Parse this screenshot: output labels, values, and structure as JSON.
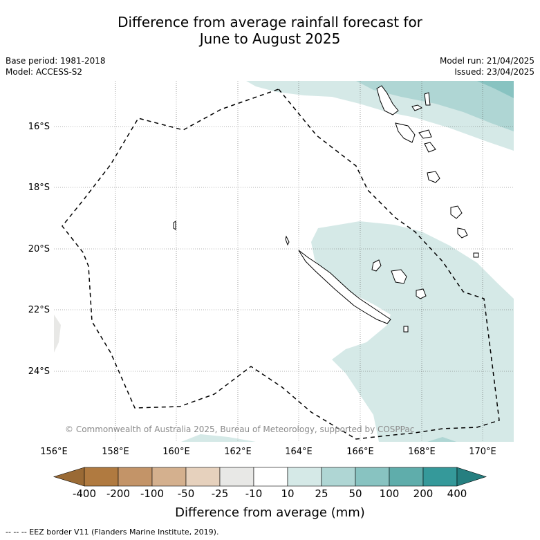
{
  "title": {
    "line1": "Difference from average rainfall forecast for",
    "line2": "June to August 2025"
  },
  "meta_left": {
    "base_period": "Base period: 1981-2018",
    "model": "Model: ACCESS-S2"
  },
  "meta_right": {
    "model_run": "Model run: 21/04/2025",
    "issued": "Issued: 23/04/2025"
  },
  "axes": {
    "lat_labels": [
      "16°S",
      "18°S",
      "20°S",
      "22°S",
      "24°S"
    ],
    "lon_labels": [
      "156°E",
      "158°E",
      "160°E",
      "162°E",
      "164°E",
      "166°E",
      "168°E",
      "170°E"
    ]
  },
  "colorbar": {
    "title": "Difference from average (mm)",
    "ticks": [
      "-400",
      "-200",
      "-100",
      "-50",
      "-25",
      "-10",
      "10",
      "25",
      "50",
      "100",
      "200",
      "400"
    ],
    "colors": [
      "#b07a40",
      "#c39468",
      "#d4b08e",
      "#e6d1bd",
      "#e8e8e6",
      "#ffffff",
      "#d5e9e7",
      "#afd6d4",
      "#88c3c1",
      "#5fadab",
      "#35999a"
    ],
    "low_extend_color": "#9a6a35",
    "high_extend_color": "#267f80"
  },
  "copyright": "© Commonwealth of Australia 2025, Bureau of Meteorology, supported by COSPPac",
  "footnote": "--  --  -- EEZ border V11 (Flanders Marine Institute, 2019)."
}
